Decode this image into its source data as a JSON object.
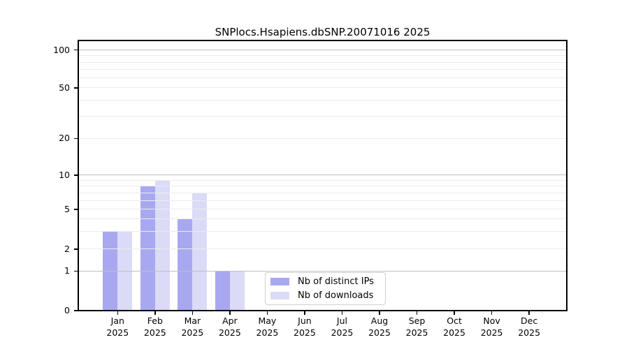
{
  "title": "SNPlocs.Hsapiens.dbSNP.20071016 2025",
  "colors": {
    "bar_distinct_ips": "#a8a8f1",
    "bar_downloads": "#dbdbf8",
    "grid_major": "#c0c0c0",
    "grid_minor": "#ececec",
    "spine": "#000000",
    "legend_border": "#cfcfcf"
  },
  "chart_data": {
    "type": "bar",
    "title": "SNPlocs.Hsapiens.dbSNP.20071016 2025",
    "categories": [
      "Jan",
      "Feb",
      "Mar",
      "Apr",
      "May",
      "Jun",
      "Jul",
      "Aug",
      "Sep",
      "Oct",
      "Nov",
      "Dec"
    ],
    "year_label": "2025",
    "series": [
      {
        "name": "Nb of distinct IPs",
        "color": "#a8a8f1",
        "values": [
          3,
          8,
          4,
          1,
          0,
          0,
          0,
          0,
          0,
          0,
          0,
          0
        ]
      },
      {
        "name": "Nb of downloads",
        "color": "#dbdbf8",
        "values": [
          3,
          9,
          7,
          1,
          0,
          0,
          0,
          0,
          0,
          0,
          0,
          0
        ]
      }
    ],
    "xlabel": "",
    "ylabel": "",
    "yscale": "log1p-like",
    "ylim": [
      0,
      100
    ],
    "yticks": [
      0,
      1,
      2,
      5,
      10,
      20,
      50,
      100
    ],
    "y_major_gridlines": [
      1,
      10,
      100
    ],
    "y_minor_gridlines": [
      2,
      3,
      4,
      5,
      6,
      7,
      8,
      9,
      20,
      30,
      40,
      50,
      60,
      70,
      80,
      90
    ],
    "grid": true,
    "legend_position": "lower-center"
  }
}
